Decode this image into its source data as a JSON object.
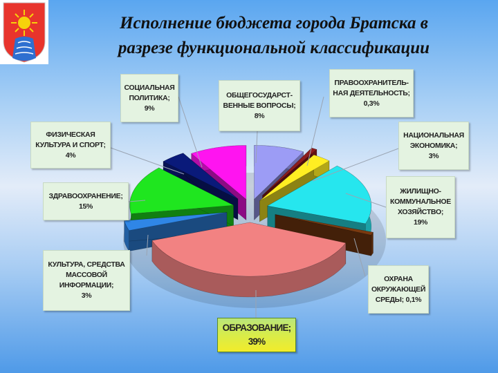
{
  "title": {
    "line1": "Исполнение бюджета города Братска в",
    "line2": "разрезе функциональной классификации"
  },
  "logo": {
    "icon": "city-coat-of-arms-icon",
    "colors": [
      "#e8342c",
      "#f6d20b",
      "#2e6fd0"
    ]
  },
  "chart_data": {
    "type": "pie",
    "title": "Исполнение бюджета города Братска в разрезе функциональной классификации",
    "slices": [
      {
        "name": "ОБЩЕГОСУДАРСТВЕННЫЕ ВОПРОСЫ",
        "label_lines": [
          "ОБЩЕГОСУДАРСТ-",
          "ВЕННЫЕ ВОПРОСЫ;"
        ],
        "value_text": "8%",
        "value": 8,
        "color": "#9c9cf5"
      },
      {
        "name": "ПРАВООХРАНИТЕЛЬНАЯ ДЕЯТЕЛЬНОСТЬ",
        "label_lines": [
          "ПРАВООХРАНИТЕЛЬ-",
          "НАЯ ДЕЯТЕЛЬНОСТЬ;"
        ],
        "value_text": "0,3%",
        "value": 0.3,
        "color": "#8c1c1c"
      },
      {
        "name": "НАЦИОНАЛЬНАЯ ЭКОНОМИКА",
        "label_lines": [
          "НАЦИОНАЛЬНАЯ",
          "ЭКОНОМИКА;"
        ],
        "value_text": "3%",
        "value": 3,
        "color": "#ffee22"
      },
      {
        "name": "ЖИЛИЩНО-КОММУНАЛЬНОЕ ХОЗЯЙСТВО",
        "label_lines": [
          "ЖИЛИЩНО-",
          "КОММУНАЛЬНОЕ",
          "ХОЗЯЙСТВО;"
        ],
        "value_text": "19%",
        "value": 19,
        "color": "#26e6ee"
      },
      {
        "name": "ОХРАНА ОКРУЖАЮЩЕЙ СРЕДЫ",
        "label_lines": [
          "ОХРАНА",
          "ОКРУЖАЮЩЕЙ",
          "СРЕДЫ; 0,1%"
        ],
        "value_text": "",
        "value": 0.1,
        "color": "#7a3a10"
      },
      {
        "name": "ОБРАЗОВАНИЕ",
        "label_lines": [
          "ОБРАЗОВАНИЕ;"
        ],
        "value_text": "39%",
        "value": 39,
        "color": "#f28282"
      },
      {
        "name": "КУЛЬТУРА, СРЕДСТВА МАССОВОЙ ИНФОРМАЦИИ",
        "label_lines": [
          "КУЛЬТУРА, СРЕДСТВА",
          "МАССОВОЙ",
          "ИНФОРМАЦИИ;"
        ],
        "value_text": "3%",
        "value": 3,
        "color": "#2f86e6"
      },
      {
        "name": "ЗДРАВООХРАНЕНИЕ",
        "label_lines": [
          "ЗДРАВООХРАНЕНИЕ;"
        ],
        "value_text": "15%",
        "value": 15,
        "color": "#1fe61f"
      },
      {
        "name": "ФИЗИЧЕСКАЯ КУЛЬТУРА И СПОРТ",
        "label_lines": [
          "ФИЗИЧЕСКАЯ",
          "КУЛЬТУРА И СПОРТ;"
        ],
        "value_text": "4%",
        "value": 4,
        "color": "#0a1a7a"
      },
      {
        "name": "СОЦИАЛЬНАЯ ПОЛИТИКА",
        "label_lines": [
          "СОЦИАЛЬНАЯ",
          "ПОЛИТИКА;"
        ],
        "value_text": "9%",
        "value": 9,
        "color": "#ff14f0"
      }
    ],
    "legend": "none",
    "labels_style": "callout-boxes"
  }
}
